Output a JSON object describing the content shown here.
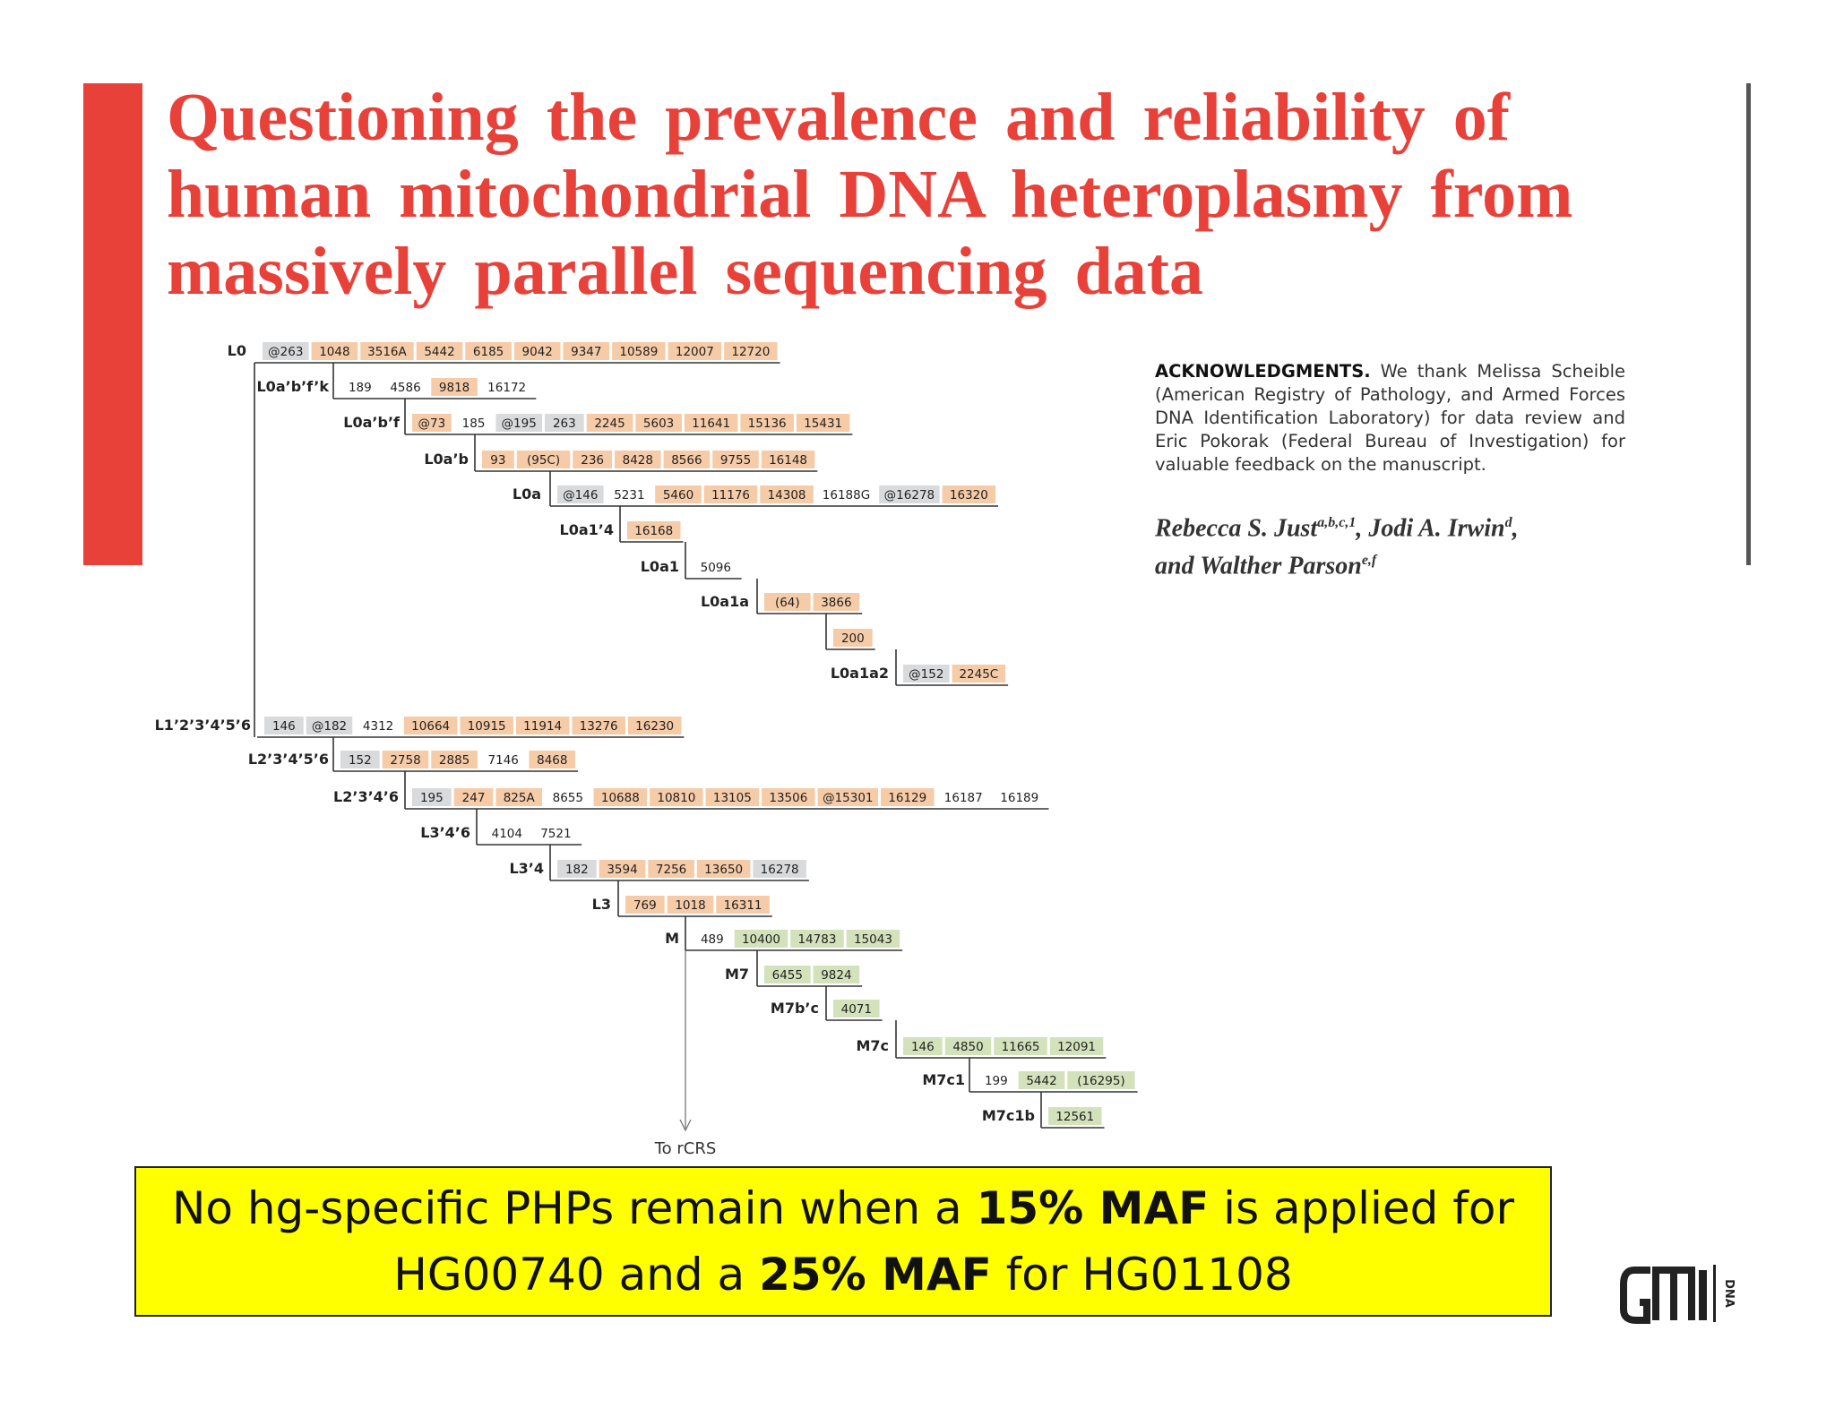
{
  "title": {
    "line1": "Questioning the prevalence and reliability of",
    "line2": "human mitochondrial DNA heteroplasmy from",
    "line3": "massively parallel sequencing data"
  },
  "acknowledgments": {
    "heading": "ACKNOWLEDGMENTS.",
    "text": "We thank Melissa Scheible (American Registry of Pathology, and Armed Forces DNA Identification Laboratory) for data review and Eric Pokorak (Federal Bureau of Investigation) for valuable feedback on the manuscript."
  },
  "authors": {
    "a1": "Rebecca S. Just",
    "a1_sup": "a,b,c,1",
    "sep1": ", ",
    "a2": "Jodi A. Irwin",
    "a2_sup": "d",
    "sep2": ",",
    "conj": "and ",
    "a3": "Walther Parson",
    "a3_sup": "e,f"
  },
  "colors": {
    "title_red": "#e8413a",
    "orange": "#f6cba7",
    "gray": "#d9dadc",
    "green": "#d4e2bb",
    "highlight_yellow": "#ffff00"
  },
  "tree": {
    "to_rcrs": "To rCRS",
    "nodes": [
      {
        "label": "L0",
        "muts": [
          [
            "@263",
            "g"
          ],
          [
            "1048",
            "o"
          ],
          [
            "3516A",
            "o"
          ],
          [
            "5442",
            "o"
          ],
          [
            "6185",
            "o"
          ],
          [
            "9042",
            "o"
          ],
          [
            "9347",
            "o"
          ],
          [
            "10589",
            "o"
          ],
          [
            "12007",
            "o"
          ],
          [
            "12720",
            "o"
          ]
        ]
      },
      {
        "label": "L0a’b’f’k",
        "muts": [
          [
            "189",
            ""
          ],
          [
            "4586",
            ""
          ],
          [
            "9818",
            "o"
          ],
          [
            "16172",
            ""
          ]
        ]
      },
      {
        "label": "L0a’b’f",
        "muts": [
          [
            "@73",
            "o"
          ],
          [
            "185",
            ""
          ],
          [
            "@195",
            "g"
          ],
          [
            "263",
            "g"
          ],
          [
            "2245",
            "o"
          ],
          [
            "5603",
            "o"
          ],
          [
            "11641",
            "o"
          ],
          [
            "15136",
            "o"
          ],
          [
            "15431",
            "o"
          ]
        ]
      },
      {
        "label": "L0a’b",
        "muts": [
          [
            "93",
            "o"
          ],
          [
            "(95C)",
            "o"
          ],
          [
            "236",
            "o"
          ],
          [
            "8428",
            "o"
          ],
          [
            "8566",
            "o"
          ],
          [
            "9755",
            "o"
          ],
          [
            "16148",
            "o"
          ]
        ]
      },
      {
        "label": "L0a",
        "muts": [
          [
            "@146",
            "g"
          ],
          [
            "5231",
            ""
          ],
          [
            "5460",
            "o"
          ],
          [
            "11176",
            "o"
          ],
          [
            "14308",
            "o"
          ],
          [
            "16188G",
            ""
          ],
          [
            "@16278",
            "g"
          ],
          [
            "16320",
            "o"
          ]
        ]
      },
      {
        "label": "L0a1’4",
        "muts": [
          [
            "16168",
            "o"
          ]
        ]
      },
      {
        "label": "L0a1",
        "muts": [
          [
            "5096",
            ""
          ]
        ]
      },
      {
        "label": "L0a1a",
        "muts": [
          [
            "(64)",
            "o"
          ],
          [
            "3866",
            "o"
          ]
        ]
      },
      {
        "label": "",
        "muts": [
          [
            "200",
            "o"
          ]
        ]
      },
      {
        "label": "L0a1a2",
        "muts": [
          [
            "@152",
            "g"
          ],
          [
            "2245C",
            "o"
          ]
        ]
      },
      {
        "label": "L1’2’3’4’5’6",
        "muts": [
          [
            "146",
            "g"
          ],
          [
            "@182",
            "g"
          ],
          [
            "4312",
            ""
          ],
          [
            "10664",
            "o"
          ],
          [
            "10915",
            "o"
          ],
          [
            "11914",
            "o"
          ],
          [
            "13276",
            "o"
          ],
          [
            "16230",
            "o"
          ]
        ]
      },
      {
        "label": "L2’3’4’5’6",
        "muts": [
          [
            "152",
            "g"
          ],
          [
            "2758",
            "o"
          ],
          [
            "2885",
            "o"
          ],
          [
            "7146",
            ""
          ],
          [
            "8468",
            "o"
          ]
        ]
      },
      {
        "label": "L2’3’4’6",
        "muts": [
          [
            "195",
            "g"
          ],
          [
            "247",
            "o"
          ],
          [
            "825A",
            "o"
          ],
          [
            "8655",
            ""
          ],
          [
            "10688",
            "o"
          ],
          [
            "10810",
            "o"
          ],
          [
            "13105",
            "o"
          ],
          [
            "13506",
            "o"
          ],
          [
            "@15301",
            "o"
          ],
          [
            "16129",
            "o"
          ],
          [
            "16187",
            ""
          ],
          [
            "16189",
            ""
          ]
        ]
      },
      {
        "label": "L3’4’6",
        "muts": [
          [
            "4104",
            ""
          ],
          [
            "7521",
            ""
          ]
        ]
      },
      {
        "label": "L3’4",
        "muts": [
          [
            "182",
            "g"
          ],
          [
            "3594",
            "o"
          ],
          [
            "7256",
            "o"
          ],
          [
            "13650",
            "o"
          ],
          [
            "16278",
            "g"
          ]
        ]
      },
      {
        "label": "L3",
        "muts": [
          [
            "769",
            "o"
          ],
          [
            "1018",
            "o"
          ],
          [
            "16311",
            "o"
          ]
        ]
      },
      {
        "label": "M",
        "muts": [
          [
            "489",
            ""
          ],
          [
            "10400",
            "v"
          ],
          [
            "14783",
            "v"
          ],
          [
            "15043",
            "v"
          ]
        ]
      },
      {
        "label": "M7",
        "muts": [
          [
            "6455",
            "v"
          ],
          [
            "9824",
            "v"
          ]
        ]
      },
      {
        "label": "M7b’c",
        "muts": [
          [
            "4071",
            "v"
          ]
        ]
      },
      {
        "label": "M7c",
        "muts": [
          [
            "146",
            "v"
          ],
          [
            "4850",
            "v"
          ],
          [
            "11665",
            "v"
          ],
          [
            "12091",
            "v"
          ]
        ]
      },
      {
        "label": "M7c1",
        "muts": [
          [
            "199",
            ""
          ],
          [
            "5442",
            "v"
          ],
          [
            "(16295)",
            "v"
          ]
        ]
      },
      {
        "label": "M7c1b",
        "muts": [
          [
            "12561",
            "v"
          ]
        ]
      }
    ]
  },
  "note": {
    "l1a": "No hg-specific PHPs remain when a ",
    "l1b": "15% MAF",
    "l1c": " is applied for",
    "l2a": "HG00740 and a ",
    "l2b": "25% MAF",
    "l2c": " for HG01108"
  },
  "logo": {
    "mark": "GMI",
    "side": "DNA"
  }
}
